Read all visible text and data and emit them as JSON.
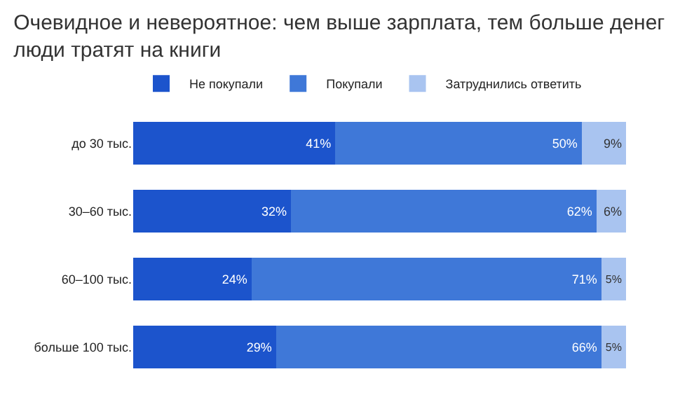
{
  "chart_data": {
    "type": "bar",
    "title": "Очевидное и невероятное: чем выше зарплата, тем больше денег люди тратят на книги",
    "orientation": "horizontal",
    "stacked": true,
    "legend": "top left",
    "grid": false,
    "categories": [
      "до 30 тыс.",
      "30–60 тыс.",
      "60–100 тыс.",
      "больше 100 тыс."
    ],
    "series": [
      {
        "name": "Не покупали",
        "color": "#1c54cc",
        "values": [
          41,
          32,
          24,
          29
        ],
        "value_labels": [
          "41%",
          "32%",
          "24%",
          "29%"
        ]
      },
      {
        "name": "Покупали",
        "color": "#3f78d8",
        "values": [
          50,
          62,
          71,
          66
        ],
        "value_labels": [
          "50%",
          "62%",
          "71%",
          "66%"
        ]
      },
      {
        "name": "Затруднились ответить",
        "color": "#a9c4f0",
        "values": [
          9,
          6,
          5,
          5
        ],
        "value_labels": [
          "9%",
          "6%",
          "5%",
          "5%"
        ]
      }
    ]
  }
}
